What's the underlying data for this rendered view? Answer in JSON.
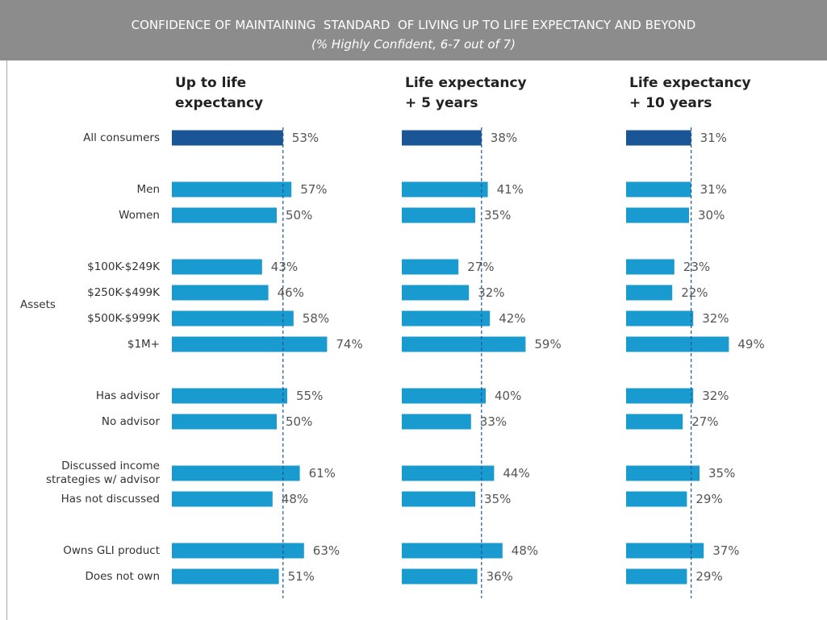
{
  "chart_data": {
    "type": "bar",
    "title": "CONFIDENCE OF MAINTAINING  STANDARD  OF LIVING UP TO LIFE EXPECTANCY AND BEYOND",
    "subtitle": "(% Highly Confident, 6-7 out of 7)",
    "group_label": "Assets",
    "categories": [
      "All consumers",
      "Men",
      "Women",
      "$100K-$249K",
      "$250K-$499K",
      "$500K-$999K",
      "$1M+",
      "Has advisor",
      "No advisor",
      "Discussed income\nstrategies w/ advisor",
      "Has not discussed",
      "Owns GLI product",
      "Does not own"
    ],
    "highlight_color": "#1a5596",
    "color": "#1a9bd0",
    "series": [
      {
        "name": "Up to life\nexpectancy",
        "values": [
          53,
          57,
          50,
          43,
          46,
          58,
          74,
          55,
          50,
          61,
          48,
          63,
          51
        ],
        "value_labels": [
          "53%",
          "57%",
          "50%",
          "43%",
          "46%",
          "58%",
          "74%",
          "55%",
          "50%",
          "61%",
          "48%",
          "63%",
          "51%"
        ]
      },
      {
        "name": "Life expectancy\n+ 5 years",
        "values": [
          38,
          41,
          35,
          27,
          32,
          42,
          59,
          40,
          33,
          44,
          35,
          48,
          36
        ],
        "value_labels": [
          "38%",
          "41%",
          "35%",
          "27%",
          "32%",
          "42%",
          "59%",
          "40%",
          "33%",
          "44%",
          "35%",
          "48%",
          "36%"
        ]
      },
      {
        "name": "Life expectancy\n+ 10 years",
        "values": [
          31,
          31,
          30,
          23,
          22,
          32,
          49,
          32,
          27,
          35,
          29,
          37,
          29
        ],
        "value_labels": [
          "31%",
          "31%",
          "30%",
          "23%",
          "22%",
          "32%",
          "49%",
          "32%",
          "27%",
          "35%",
          "29%",
          "37%",
          "29%"
        ]
      }
    ]
  }
}
